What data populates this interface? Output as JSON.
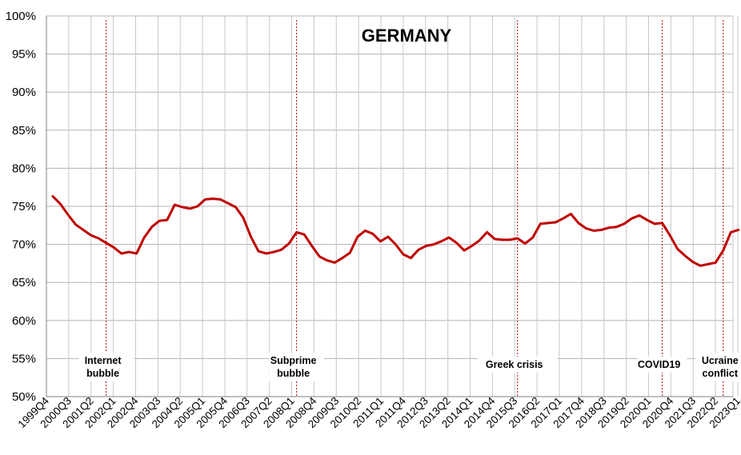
{
  "chart_data": {
    "type": "line",
    "title": "GERMANY",
    "xlabel": "",
    "ylabel": "",
    "ylim": [
      50,
      100
    ],
    "yticks": [
      "50%",
      "55%",
      "60%",
      "65%",
      "70%",
      "75%",
      "80%",
      "85%",
      "90%",
      "95%",
      "100%"
    ],
    "xtick_labels": [
      "1999Q4",
      "2000Q3",
      "2001Q2",
      "2002Q1",
      "2002Q4",
      "2003Q3",
      "2004Q2",
      "2005Q1",
      "2005Q4",
      "2006Q3",
      "2007Q2",
      "2008Q1",
      "2008Q4",
      "2009Q3",
      "2010Q2",
      "2011Q1",
      "2011Q4",
      "2012Q3",
      "2013Q2",
      "2014Q1",
      "2014Q4",
      "2015Q3",
      "2016Q2",
      "2017Q1",
      "2017Q4",
      "2018Q3",
      "2019Q2",
      "2020Q1",
      "2020Q4",
      "2021Q3",
      "2022Q2",
      "2023Q1"
    ],
    "grid": "horizontal",
    "series": [
      {
        "x_start": "1999Q4",
        "frequency": "quarterly",
        "values": [
          76.3,
          75.3,
          73.9,
          72.6,
          71.9,
          71.2,
          70.8,
          70.2,
          69.6,
          68.8,
          69.0,
          68.8,
          70.9,
          72.3,
          73.1,
          73.2,
          75.2,
          74.9,
          74.7,
          75.0,
          75.9,
          76.0,
          75.9,
          75.4,
          74.9,
          73.5,
          71.0,
          69.1,
          68.8,
          69.0,
          69.3,
          70.1,
          71.6,
          71.3,
          69.8,
          68.4,
          67.9,
          67.6,
          68.2,
          68.9,
          71.0,
          71.8,
          71.4,
          70.4,
          71.0,
          70.0,
          68.7,
          68.2,
          69.3,
          69.8,
          70.0,
          70.4,
          70.9,
          70.2,
          69.2,
          69.8,
          70.5,
          71.6,
          70.7,
          70.6,
          70.6,
          70.8,
          70.1,
          70.9,
          72.7,
          72.8,
          72.9,
          73.4,
          74.0,
          72.8,
          72.1,
          71.8,
          71.9,
          72.2,
          72.3,
          72.7,
          73.4,
          73.8,
          73.2,
          72.7,
          72.8,
          71.2,
          69.4,
          68.5,
          67.7,
          67.2,
          67.4,
          67.6,
          69.2,
          71.6,
          71.9
        ],
        "color": "#c00000"
      }
    ],
    "annotations": [
      {
        "period": "2001Q3",
        "lines": [
          "Internet",
          "bubble"
        ]
      },
      {
        "period": "2007Q4",
        "lines": [
          "Subprime",
          "bubble"
        ]
      },
      {
        "period": "2015Q1",
        "lines": [
          "Greek crisis"
        ]
      },
      {
        "period": "2019Q4",
        "lines": [
          "COVID19"
        ]
      },
      {
        "period": "2021Q4",
        "lines": [
          "Ucraine",
          "conflict"
        ]
      }
    ]
  }
}
